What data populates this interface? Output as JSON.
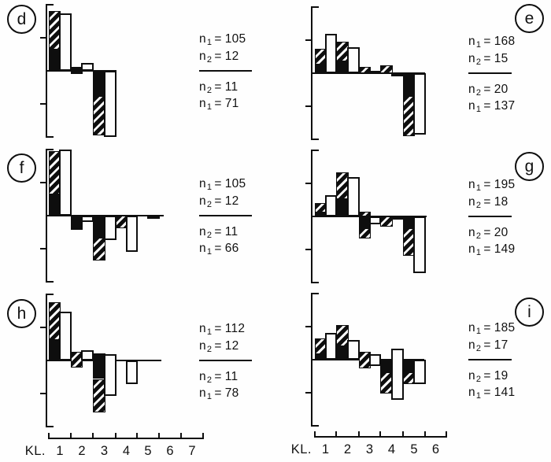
{
  "chart_data": {
    "type": "bar",
    "description": "Six paired-bar deviation histograms (panels d-i), values in axis tick units (1 tick = 1 unit), baseline 0 at panel mid-height, axis range +2 to -2. Each class KL has a filled bar (black, partly diagonal-hatched) and an open white bar. Sample sizes n1/n2 listed beside each panel, separated by a rule at the zero line.",
    "ylim": [
      -2,
      2
    ],
    "y_ticks": [
      1,
      -1
    ],
    "bar_styles": {
      "a": "black filled bar with diagonal-hatched segment",
      "b": "open white outlined bar"
    },
    "x_axes": {
      "left": {
        "class_label": "KL.",
        "numbers": [
          "1",
          "2",
          "3",
          "4",
          "5",
          "6",
          "7"
        ]
      },
      "right": {
        "class_label": "KL.",
        "numbers": [
          "1",
          "2",
          "3",
          "4",
          "5",
          "6"
        ]
      }
    },
    "panels": [
      {
        "letter": "d",
        "column": "left",
        "row": 0,
        "n_labels": {
          "above": [
            {
              "label": "n",
              "sub": "1",
              "eq": "=",
              "value": "105"
            },
            {
              "label": "n",
              "sub": "2",
              "eq": "=",
              "value": "12"
            }
          ],
          "below": [
            {
              "label": "n",
              "sub": "2",
              "eq": "=",
              "value": "11"
            },
            {
              "label": "n",
              "sub": "1",
              "eq": "=",
              "value": "71"
            }
          ]
        },
        "bars": [
          {
            "c": 1,
            "s": "a",
            "seg": [
              [
                1.8,
                0.65,
                "hatch"
              ],
              [
                0.65,
                0,
                "black"
              ]
            ]
          },
          {
            "c": 1,
            "s": "b",
            "seg": [
              [
                1.75,
                0,
                "white"
              ]
            ]
          },
          {
            "c": 2,
            "s": "a",
            "seg": [
              [
                0.12,
                -0.1,
                "black"
              ]
            ]
          },
          {
            "c": 2,
            "s": "b",
            "seg": [
              [
                0.25,
                0,
                "white"
              ]
            ]
          },
          {
            "c": 3,
            "s": "a",
            "seg": [
              [
                0,
                -0.75,
                "black"
              ],
              [
                -0.75,
                -1.95,
                "hatch"
              ]
            ]
          },
          {
            "c": 3,
            "s": "b",
            "seg": [
              [
                0,
                -2,
                "white"
              ]
            ]
          }
        ]
      },
      {
        "letter": "e",
        "column": "right",
        "row": 0,
        "n_labels": {
          "above": [
            {
              "label": "n",
              "sub": "1",
              "eq": "=",
              "value": "168"
            },
            {
              "label": "n",
              "sub": "2",
              "eq": "=",
              "value": "15"
            }
          ],
          "below": [
            {
              "label": "n",
              "sub": "2",
              "eq": "=",
              "value": "20"
            },
            {
              "label": "n",
              "sub": "1",
              "eq": "=",
              "value": "137"
            }
          ]
        },
        "bars": [
          {
            "c": 1,
            "s": "a",
            "seg": [
              [
                0.74,
                0.26,
                "hatch"
              ],
              [
                0.26,
                0,
                "black"
              ]
            ]
          },
          {
            "c": 1,
            "s": "b",
            "seg": [
              [
                1.2,
                0,
                "white"
              ]
            ]
          },
          {
            "c": 2,
            "s": "a",
            "seg": [
              [
                0.95,
                0.36,
                "hatch"
              ],
              [
                0.36,
                0,
                "black"
              ]
            ]
          },
          {
            "c": 2,
            "s": "b",
            "seg": [
              [
                0.79,
                0,
                "white"
              ]
            ]
          },
          {
            "c": 3,
            "s": "a",
            "seg": [
              [
                0.19,
                0,
                "hatch"
              ]
            ]
          },
          {
            "c": 3,
            "s": "b",
            "seg": [
              [
                0.08,
                0,
                "white"
              ]
            ]
          },
          {
            "c": 4,
            "s": "a",
            "seg": [
              [
                0.24,
                0,
                "hatch"
              ]
            ]
          },
          {
            "c": 4,
            "s": "b",
            "seg": [
              [
                0,
                -0.08,
                "white"
              ]
            ]
          },
          {
            "c": 5,
            "s": "a",
            "seg": [
              [
                0,
                -0.69,
                "black"
              ],
              [
                -0.69,
                -1.9,
                "hatch"
              ]
            ]
          },
          {
            "c": 5,
            "s": "b",
            "seg": [
              [
                0,
                -1.86,
                "white"
              ]
            ]
          }
        ]
      },
      {
        "letter": "f",
        "column": "left",
        "row": 1,
        "n_labels": {
          "above": [
            {
              "label": "n",
              "sub": "1",
              "eq": "=",
              "value": "105"
            },
            {
              "label": "n",
              "sub": "2",
              "eq": "=",
              "value": "12"
            }
          ],
          "below": [
            {
              "label": "n",
              "sub": "2",
              "eq": "=",
              "value": "11"
            },
            {
              "label": "n",
              "sub": "1",
              "eq": "=",
              "value": "66"
            }
          ]
        },
        "bars": [
          {
            "c": 1,
            "s": "a",
            "seg": [
              [
                1.95,
                0.65,
                "hatch"
              ],
              [
                0.65,
                0,
                "black"
              ]
            ]
          },
          {
            "c": 1,
            "s": "b",
            "seg": [
              [
                2,
                0,
                "white"
              ]
            ]
          },
          {
            "c": 2,
            "s": "a",
            "seg": [
              [
                0,
                -0.42,
                "black"
              ]
            ]
          },
          {
            "c": 2,
            "s": "b",
            "seg": [
              [
                0,
                -0.18,
                "white"
              ]
            ]
          },
          {
            "c": 3,
            "s": "a",
            "seg": [
              [
                0,
                -0.66,
                "black"
              ],
              [
                -0.66,
                -1.36,
                "hatch"
              ]
            ]
          },
          {
            "c": 3,
            "s": "b",
            "seg": [
              [
                0,
                -0.73,
                "white"
              ]
            ]
          },
          {
            "c": 4,
            "s": "a",
            "seg": [
              [
                0,
                -0.38,
                "hatch"
              ]
            ]
          },
          {
            "c": 4,
            "s": "b",
            "seg": [
              [
                0,
                -1.1,
                "white"
              ]
            ]
          },
          {
            "c": 5,
            "s": "b",
            "seg": [
              [
                0,
                -0.06,
                "white"
              ]
            ]
          }
        ]
      },
      {
        "letter": "g",
        "column": "right",
        "row": 1,
        "n_labels": {
          "above": [
            {
              "label": "n",
              "sub": "1",
              "eq": "=",
              "value": "195"
            },
            {
              "label": "n",
              "sub": "2",
              "eq": "=",
              "value": "18"
            }
          ],
          "below": [
            {
              "label": "n",
              "sub": "2",
              "eq": "=",
              "value": "20"
            },
            {
              "label": "n",
              "sub": "1",
              "eq": "=",
              "value": "149"
            }
          ]
        },
        "bars": [
          {
            "c": 1,
            "s": "a",
            "seg": [
              [
                0.4,
                0.12,
                "hatch"
              ],
              [
                0.12,
                0,
                "black"
              ]
            ]
          },
          {
            "c": 1,
            "s": "b",
            "seg": [
              [
                0.64,
                0,
                "white"
              ]
            ]
          },
          {
            "c": 2,
            "s": "a",
            "seg": [
              [
                1.33,
                0.52,
                "hatch"
              ],
              [
                0.52,
                0,
                "black"
              ]
            ]
          },
          {
            "c": 2,
            "s": "b",
            "seg": [
              [
                1.19,
                0,
                "white"
              ]
            ]
          },
          {
            "c": 3,
            "s": "a",
            "seg": [
              [
                0.14,
                0,
                "hatch"
              ],
              [
                0,
                -0.36,
                "black"
              ],
              [
                -0.36,
                -0.67,
                "hatch"
              ]
            ]
          },
          {
            "c": 3,
            "s": "b",
            "seg": [
              [
                0,
                -0.24,
                "white"
              ]
            ]
          },
          {
            "c": 4,
            "s": "a",
            "seg": [
              [
                0,
                -0.31,
                "hatch"
              ]
            ]
          },
          {
            "c": 4,
            "s": "b",
            "seg": [
              [
                0,
                -0.1,
                "white"
              ]
            ]
          },
          {
            "c": 5,
            "s": "a",
            "seg": [
              [
                0,
                -0.36,
                "black"
              ],
              [
                -0.36,
                -1.19,
                "hatch"
              ]
            ]
          },
          {
            "c": 5,
            "s": "b",
            "seg": [
              [
                0,
                -1.71,
                "white"
              ]
            ]
          }
        ]
      },
      {
        "letter": "h",
        "column": "left",
        "row": 2,
        "n_labels": {
          "above": [
            {
              "label": "n",
              "sub": "1",
              "eq": "=",
              "value": "112"
            },
            {
              "label": "n",
              "sub": "2",
              "eq": "=",
              "value": "12"
            }
          ],
          "below": [
            {
              "label": "n",
              "sub": "2",
              "eq": "=",
              "value": "11"
            },
            {
              "label": "n",
              "sub": "1",
              "eq": "=",
              "value": "78"
            }
          ]
        },
        "bars": [
          {
            "c": 1,
            "s": "a",
            "seg": [
              [
                1.76,
                0.61,
                "hatch"
              ],
              [
                0.61,
                0,
                "black"
              ]
            ]
          },
          {
            "c": 1,
            "s": "b",
            "seg": [
              [
                1.48,
                0,
                "white"
              ]
            ]
          },
          {
            "c": 2,
            "s": "a",
            "seg": [
              [
                0.26,
                -0.21,
                "hatch"
              ]
            ]
          },
          {
            "c": 2,
            "s": "b",
            "seg": [
              [
                0.31,
                0,
                "white"
              ]
            ]
          },
          {
            "c": 3,
            "s": "a",
            "seg": [
              [
                0.21,
                -0.56,
                "black"
              ],
              [
                -0.56,
                -1.58,
                "hatch"
              ]
            ]
          },
          {
            "c": 3,
            "s": "b",
            "seg": [
              [
                0.19,
                -1.06,
                "white"
              ]
            ]
          },
          {
            "c": 4,
            "s": "b",
            "seg": [
              [
                0,
                -0.71,
                "white"
              ]
            ]
          }
        ]
      },
      {
        "letter": "i",
        "column": "right",
        "row": 2,
        "n_labels": {
          "above": [
            {
              "label": "n",
              "sub": "1",
              "eq": "=",
              "value": "185"
            },
            {
              "label": "n",
              "sub": "2",
              "eq": "=",
              "value": "17"
            }
          ],
          "below": [
            {
              "label": "n",
              "sub": "2",
              "eq": "=",
              "value": "19"
            },
            {
              "label": "n",
              "sub": "1",
              "eq": "=",
              "value": "141"
            }
          ]
        },
        "bars": [
          {
            "c": 1,
            "s": "a",
            "seg": [
              [
                0.64,
                0.17,
                "hatch"
              ],
              [
                0.17,
                0,
                "black"
              ]
            ]
          },
          {
            "c": 1,
            "s": "b",
            "seg": [
              [
                0.81,
                0,
                "white"
              ]
            ]
          },
          {
            "c": 2,
            "s": "a",
            "seg": [
              [
                1.05,
                0.4,
                "hatch"
              ],
              [
                0.4,
                0,
                "black"
              ]
            ]
          },
          {
            "c": 2,
            "s": "b",
            "seg": [
              [
                0.6,
                0,
                "white"
              ]
            ]
          },
          {
            "c": 3,
            "s": "a",
            "seg": [
              [
                0.24,
                -0.26,
                "hatch"
              ]
            ]
          },
          {
            "c": 3,
            "s": "b",
            "seg": [
              [
                0.17,
                -0.19,
                "white"
              ]
            ]
          },
          {
            "c": 4,
            "s": "a",
            "seg": [
              [
                0,
                -0.38,
                "black"
              ],
              [
                -0.38,
                -1.02,
                "hatch"
              ]
            ]
          },
          {
            "c": 4,
            "s": "b",
            "seg": [
              [
                0.33,
                -1.21,
                "white"
              ]
            ]
          },
          {
            "c": 5,
            "s": "a",
            "seg": [
              [
                0,
                -0.38,
                "black"
              ],
              [
                -0.38,
                -0.74,
                "hatch"
              ]
            ]
          },
          {
            "c": 5,
            "s": "b",
            "seg": [
              [
                0,
                -0.74,
                "white"
              ]
            ]
          }
        ]
      }
    ]
  }
}
